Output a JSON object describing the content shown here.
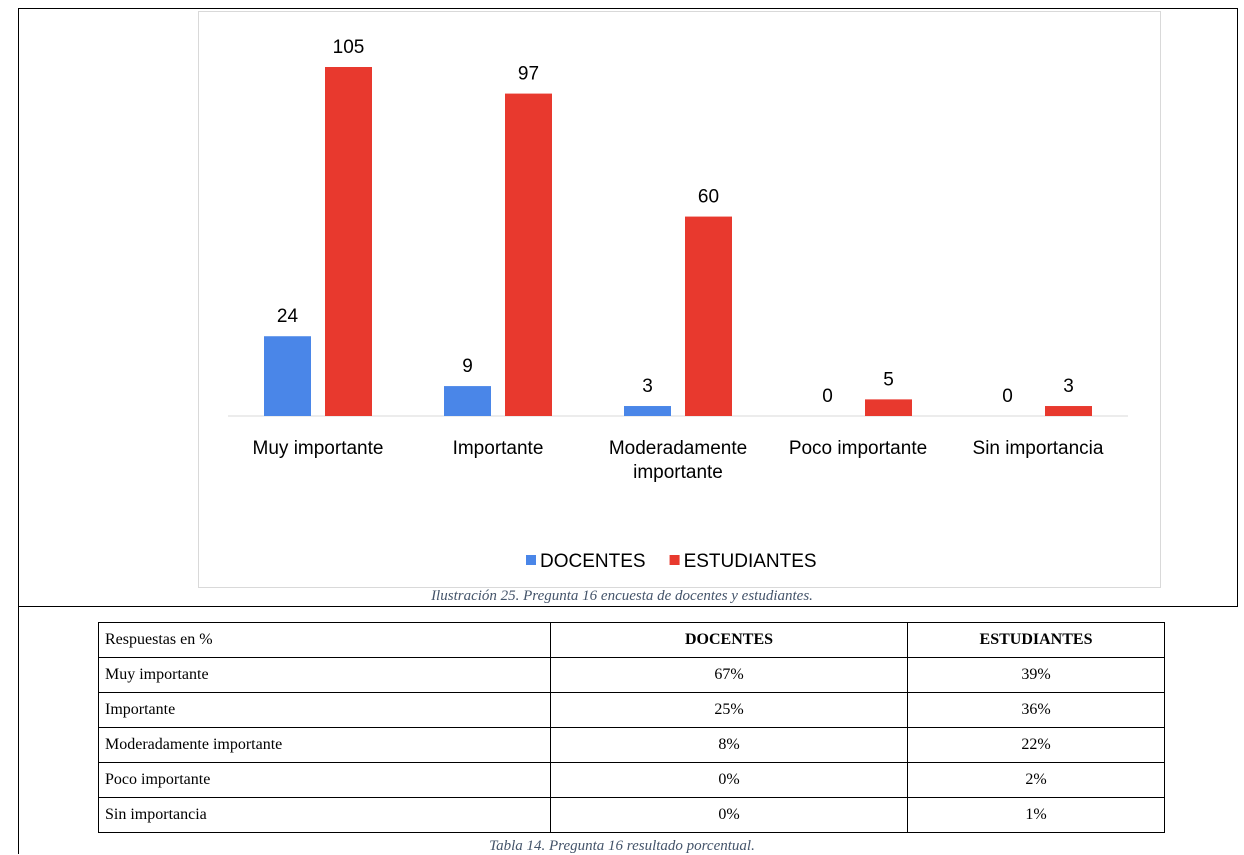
{
  "chart_data": {
    "type": "bar",
    "categories": [
      "Muy importante",
      "Importante",
      "Moderadamente importante",
      "Poco importante",
      "Sin importancia"
    ],
    "series": [
      {
        "name": "DOCENTES",
        "color": "#4a86e8",
        "values": [
          24,
          9,
          3,
          0,
          0
        ]
      },
      {
        "name": "ESTUDIANTES",
        "color": "#e8392e",
        "values": [
          105,
          97,
          60,
          5,
          3
        ]
      }
    ],
    "legend": "bottom"
  },
  "figure_caption": "Ilustración 25. Pregunta 16 encuesta de docentes y estudiantes.",
  "table": {
    "header": [
      "Respuestas en %",
      "DOCENTES",
      "ESTUDIANTES"
    ],
    "rows": [
      [
        "Muy importante",
        "67%",
        "39%"
      ],
      [
        "Importante",
        "25%",
        "36%"
      ],
      [
        "Moderadamente importante",
        "8%",
        "22%"
      ],
      [
        "Poco importante",
        "0%",
        "2%"
      ],
      [
        "Sin importancia",
        "0%",
        "1%"
      ]
    ]
  },
  "table_caption": "Tabla 14. Pregunta 16 resultado porcentual."
}
